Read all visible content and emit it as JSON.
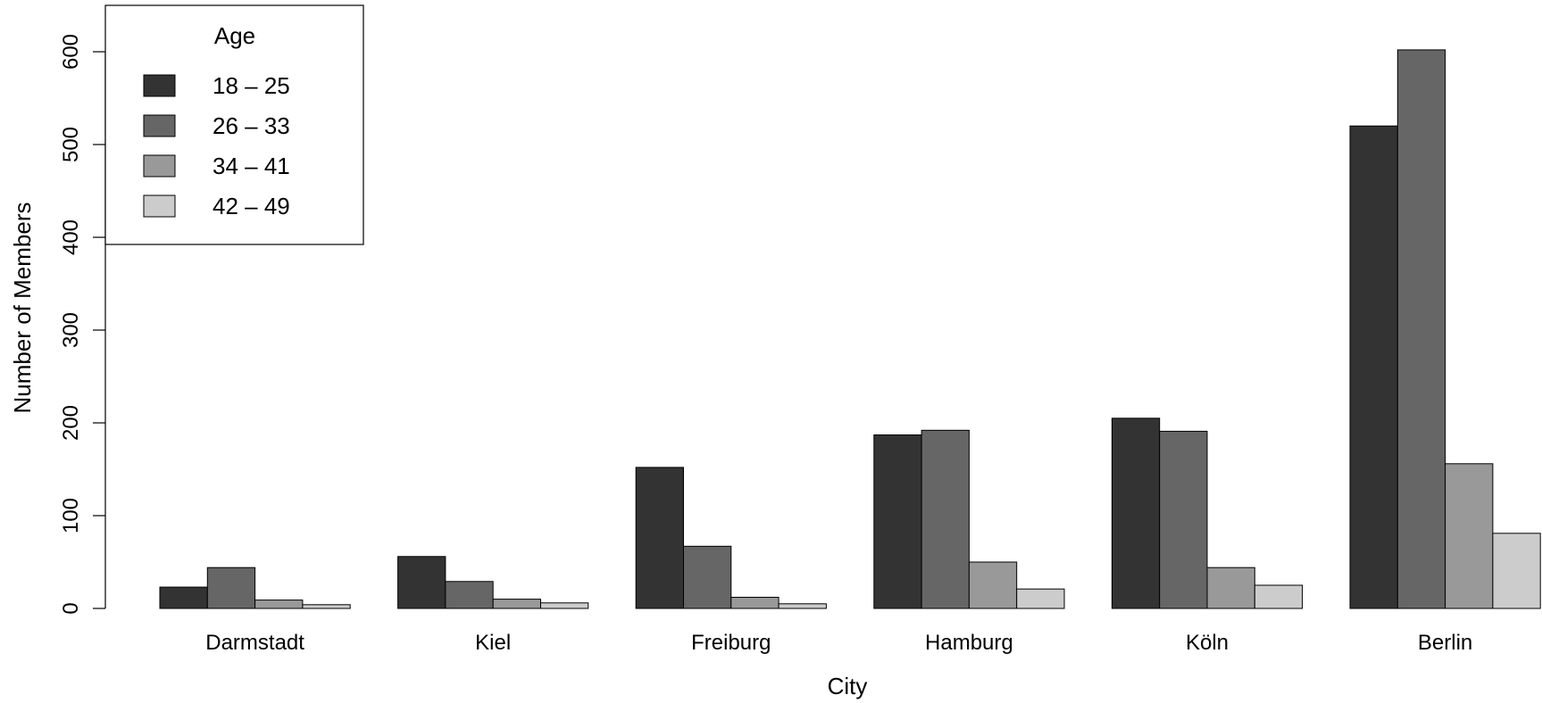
{
  "chart_data": {
    "type": "bar",
    "title": "",
    "xlabel": "City",
    "ylabel": "Number of Members",
    "categories": [
      "Darmstadt",
      "Kiel",
      "Freiburg",
      "Hamburg",
      "Köln",
      "Berlin"
    ],
    "series": [
      {
        "name": "18 – 25",
        "color": "#333333",
        "values": [
          23,
          56,
          152,
          187,
          205,
          520
        ]
      },
      {
        "name": "26 – 33",
        "color": "#666666",
        "values": [
          44,
          29,
          67,
          192,
          191,
          602
        ]
      },
      {
        "name": "34 – 41",
        "color": "#999999",
        "values": [
          9,
          10,
          12,
          50,
          44,
          156
        ]
      },
      {
        "name": "42 – 49",
        "color": "#cccccc",
        "values": [
          4,
          6,
          5,
          21,
          25,
          81
        ]
      }
    ],
    "ylim": [
      0,
      650
    ],
    "yticks": [
      0,
      100,
      200,
      300,
      400,
      500,
      600
    ],
    "legend": {
      "title": "Age",
      "position": "top-left"
    },
    "grid": false
  }
}
